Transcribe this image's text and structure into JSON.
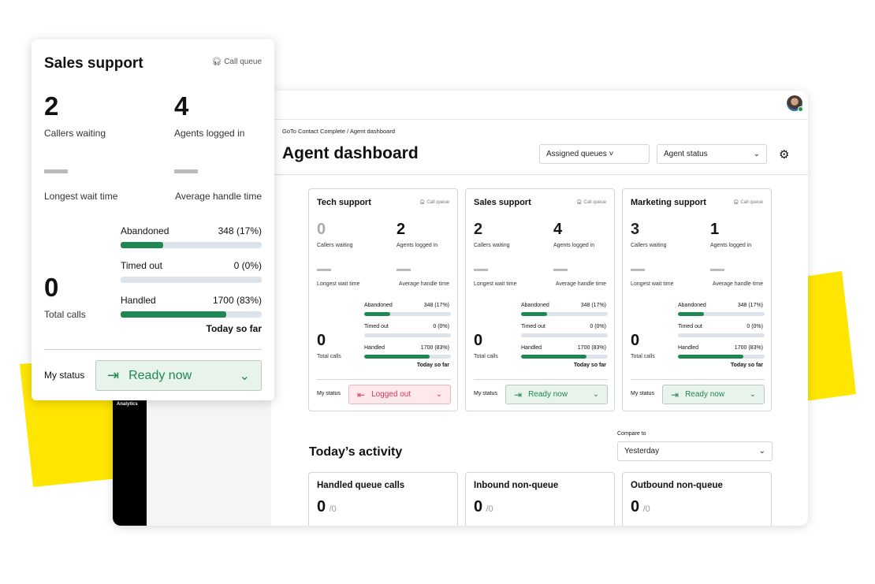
{
  "colors": {
    "accent_yellow": "#ffe600",
    "ready_green": "#1e8752",
    "logged_out_red": "#d4365a",
    "bar_track": "#dce3ea"
  },
  "popup": {
    "title": "Sales support",
    "queue_label": "Call queue",
    "queue_icon": "headset-icon",
    "callers_waiting": "2",
    "callers_waiting_label": "Callers waiting",
    "agents_logged_in": "4",
    "agents_logged_in_label": "Agents logged in",
    "longest_wait_label": "Longest wait time",
    "avg_handle_label": "Average handle time",
    "total_calls": "0",
    "total_calls_label": "Total calls",
    "bars": [
      {
        "label": "Abandoned",
        "value": "348 (17%)",
        "fill": 0.3
      },
      {
        "label": "Timed out",
        "value": "0 (0%)",
        "fill": 0
      },
      {
        "label": "Handled",
        "value": "1700 (83%)",
        "fill": 0.75
      }
    ],
    "today_so_far": "Today so far",
    "my_status_label": "My status",
    "status": "Ready now"
  },
  "app": {
    "sidebar_item": "Analytics",
    "breadcrumb": "GoTo Contact Complete / Agent dashboard",
    "title": "Agent dashboard",
    "assigned_queues": "Assigned queues",
    "agent_status": "Agent status",
    "settings_icon": "gear-icon"
  },
  "cards": [
    {
      "name": "Tech support",
      "queue_label": "Call queue",
      "callers_waiting": "0",
      "agents_logged_in": "2",
      "total_calls": "0",
      "status": "Logged out",
      "status_type": "out"
    },
    {
      "name": "Sales support",
      "queue_label": "Call queue",
      "callers_waiting": "2",
      "agents_logged_in": "4",
      "total_calls": "0",
      "status": "Ready now",
      "status_type": "ready"
    },
    {
      "name": "Marketing support",
      "queue_label": "Call queue",
      "callers_waiting": "3",
      "agents_logged_in": "1",
      "total_calls": "0",
      "status": "Ready now",
      "status_type": "ready"
    }
  ],
  "card_labels": {
    "callers_waiting": "Callers waiting",
    "agents_logged_in": "Agents logged in",
    "longest_wait": "Longest wait time",
    "avg_handle": "Average handle time",
    "total_calls": "Total calls",
    "today_so_far": "Today so far",
    "my_status": "My status",
    "bars": [
      {
        "label": "Abandoned",
        "value": "348 (17%)",
        "fill": 0.3
      },
      {
        "label": "Timed out",
        "value": "0 (0%)",
        "fill": 0
      },
      {
        "label": "Handled",
        "value": "1700 (83%)",
        "fill": 0.75
      }
    ]
  },
  "activity": {
    "title": "Today’s activity",
    "compare_label": "Compare to",
    "compare_value": "Yesterday",
    "cards": [
      {
        "title": "Handled queue calls",
        "value": "0",
        "total": "/0"
      },
      {
        "title": "Inbound non-queue",
        "value": "0",
        "total": "/0"
      },
      {
        "title": "Outbound non-queue",
        "value": "0",
        "total": "/0"
      }
    ]
  }
}
